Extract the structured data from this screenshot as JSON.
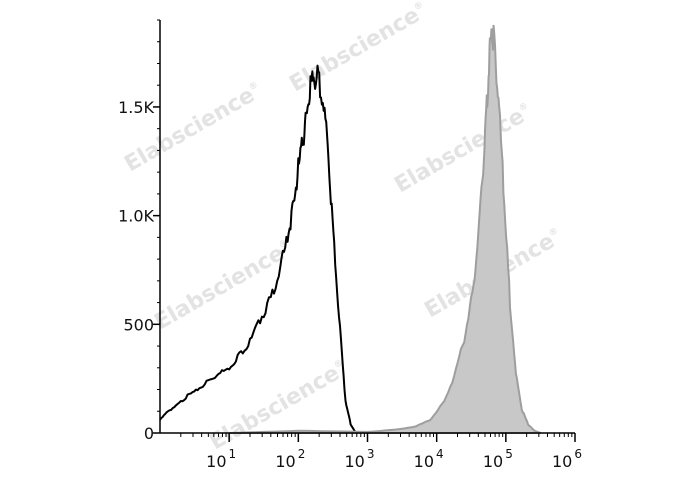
{
  "chart_data": {
    "type": "area",
    "title": "",
    "xlabel": "",
    "ylabel": "",
    "x_scale": "log",
    "xlim": [
      1,
      1000000
    ],
    "ylim": [
      0,
      1900
    ],
    "x_ticks": [
      {
        "base": "10",
        "exp": "1"
      },
      {
        "base": "10",
        "exp": "2"
      },
      {
        "base": "10",
        "exp": "3"
      },
      {
        "base": "10",
        "exp": "4"
      },
      {
        "base": "10",
        "exp": "5"
      },
      {
        "base": "10",
        "exp": "6"
      }
    ],
    "y_ticks": [
      {
        "value": 0,
        "label": "0"
      },
      {
        "value": 500,
        "label": "500"
      },
      {
        "value": 1000,
        "label": "1.0K"
      },
      {
        "value": 1500,
        "label": "1.5K"
      }
    ],
    "series": [
      {
        "style": "outline",
        "color": "#000000",
        "x": [
          1,
          1.3,
          1.8,
          2.5,
          3.5,
          5,
          7,
          10,
          14,
          20,
          28,
          40,
          55,
          70,
          85,
          100,
          115,
          130,
          150,
          170,
          200,
          240,
          280,
          330,
          400,
          480,
          570,
          680
        ],
        "y": [
          60,
          100,
          130,
          170,
          200,
          240,
          270,
          300,
          360,
          420,
          520,
          620,
          760,
          900,
          1050,
          1220,
          1330,
          1470,
          1580,
          1640,
          1620,
          1480,
          1200,
          850,
          480,
          150,
          40,
          0
        ]
      },
      {
        "style": "filled",
        "color": "#c8c8c8",
        "edge": "#9e9e9e",
        "x": [
          10,
          100,
          1000,
          2500,
          5000,
          8000,
          12000,
          18000,
          25000,
          33000,
          40000,
          47000,
          53000,
          58000,
          63000,
          70000,
          80000,
          95000,
          115000,
          140000,
          170000,
          210000,
          260000,
          320000
        ],
        "y": [
          0,
          10,
          5,
          15,
          30,
          60,
          130,
          260,
          430,
          640,
          900,
          1200,
          1500,
          1760,
          1850,
          1760,
          1500,
          1050,
          600,
          270,
          110,
          40,
          10,
          0
        ]
      }
    ],
    "watermark": "Elabscience"
  }
}
